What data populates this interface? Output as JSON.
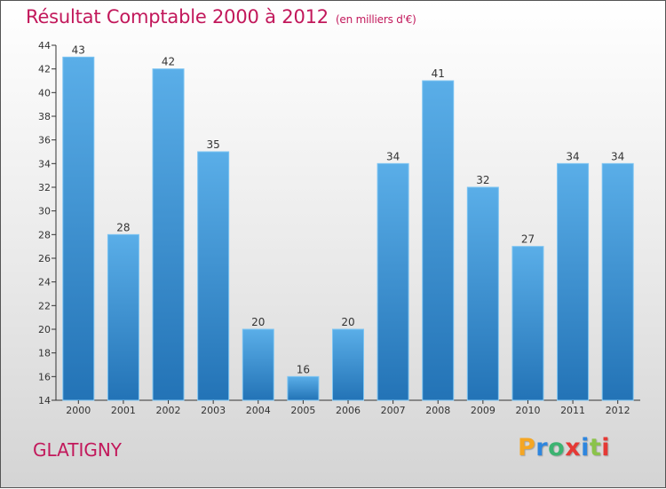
{
  "header": {
    "title": "Résultat Comptable 2000 à 2012",
    "unit": "(en milliers d'€)"
  },
  "footer": {
    "city": "GLATIGNY"
  },
  "logo": {
    "letters": [
      {
        "char": "P",
        "color": "#f5a623"
      },
      {
        "char": "r",
        "color": "#2e86de"
      },
      {
        "char": "o",
        "color": "#3cb371"
      },
      {
        "char": "x",
        "color": "#e53935"
      },
      {
        "char": "i",
        "color": "#2e86de"
      },
      {
        "char": "t",
        "color": "#8bc34a"
      },
      {
        "char": "i",
        "color": "#e53935"
      }
    ]
  },
  "chart_data": {
    "type": "bar",
    "title": "Résultat Comptable 2000 à 2012",
    "subtitle": "(en milliers d'€)",
    "xlabel": "",
    "ylabel": "",
    "categories": [
      "2000",
      "2001",
      "2002",
      "2003",
      "2004",
      "2005",
      "2006",
      "2007",
      "2008",
      "2009",
      "2010",
      "2011",
      "2012"
    ],
    "values": [
      43,
      28,
      42,
      35,
      20,
      16,
      20,
      34,
      41,
      32,
      27,
      34,
      34
    ],
    "ylim": [
      14,
      44
    ],
    "yticks": [
      14,
      16,
      18,
      20,
      22,
      24,
      26,
      28,
      30,
      32,
      34,
      36,
      38,
      40,
      42,
      44
    ],
    "grid": false,
    "colors": {
      "bar_top": "#5aaee8",
      "bar_bottom": "#2373b6",
      "axis": "#333333",
      "text": "#333333"
    }
  }
}
